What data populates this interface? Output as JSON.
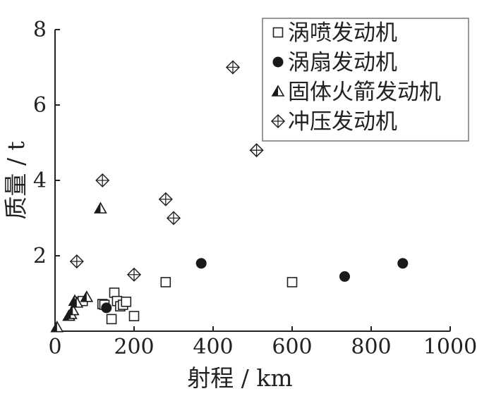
{
  "chart_data": {
    "type": "scatter",
    "title": "",
    "xlabel": "射程 / km",
    "ylabel": "质量 / t",
    "xlim": [
      0,
      1000
    ],
    "ylim": [
      0,
      8
    ],
    "xticks": [
      0,
      200,
      400,
      600,
      800,
      1000
    ],
    "yticks": [
      2,
      4,
      6,
      8
    ],
    "x_tick_labels": [
      "0",
      "200",
      "400",
      "600",
      "800",
      "1000"
    ],
    "y_tick_labels": [
      "2",
      "4",
      "6",
      "8"
    ],
    "grid": false,
    "legend_position": "top-right",
    "series": [
      {
        "name": "涡喷发动机",
        "marker": "open-square",
        "color": "#222222",
        "points": [
          {
            "x": 70,
            "y": 0.8
          },
          {
            "x": 120,
            "y": 0.72
          },
          {
            "x": 125,
            "y": 0.7
          },
          {
            "x": 143,
            "y": 0.32
          },
          {
            "x": 150,
            "y": 1.02
          },
          {
            "x": 157,
            "y": 0.8
          },
          {
            "x": 165,
            "y": 0.66
          },
          {
            "x": 172,
            "y": 0.7
          },
          {
            "x": 180,
            "y": 0.78
          },
          {
            "x": 200,
            "y": 0.4
          },
          {
            "x": 280,
            "y": 1.3
          },
          {
            "x": 600,
            "y": 1.3
          }
        ]
      },
      {
        "name": "涡扇发动机",
        "marker": "filled-circle",
        "color": "#1a1a1a",
        "points": [
          {
            "x": 130,
            "y": 0.62
          },
          {
            "x": 370,
            "y": 1.8
          },
          {
            "x": 733,
            "y": 1.45
          },
          {
            "x": 880,
            "y": 1.8
          }
        ]
      },
      {
        "name": "固体火箭发动机",
        "marker": "half-filled-triangle",
        "color": "#1a1a1a",
        "points": [
          {
            "x": 5,
            "y": 0.1
          },
          {
            "x": 35,
            "y": 0.4
          },
          {
            "x": 40,
            "y": 0.45
          },
          {
            "x": 45,
            "y": 0.55
          },
          {
            "x": 50,
            "y": 0.8
          },
          {
            "x": 55,
            "y": 0.75
          },
          {
            "x": 80,
            "y": 0.9
          },
          {
            "x": 115,
            "y": 3.25
          }
        ]
      },
      {
        "name": "冲压发动机",
        "marker": "diamond-cross",
        "color": "#222222",
        "points": [
          {
            "x": 55,
            "y": 1.85
          },
          {
            "x": 120,
            "y": 4.0
          },
          {
            "x": 200,
            "y": 1.5
          },
          {
            "x": 280,
            "y": 3.5
          },
          {
            "x": 300,
            "y": 3.0
          },
          {
            "x": 450,
            "y": 7.0
          },
          {
            "x": 510,
            "y": 4.8
          }
        ]
      }
    ]
  }
}
